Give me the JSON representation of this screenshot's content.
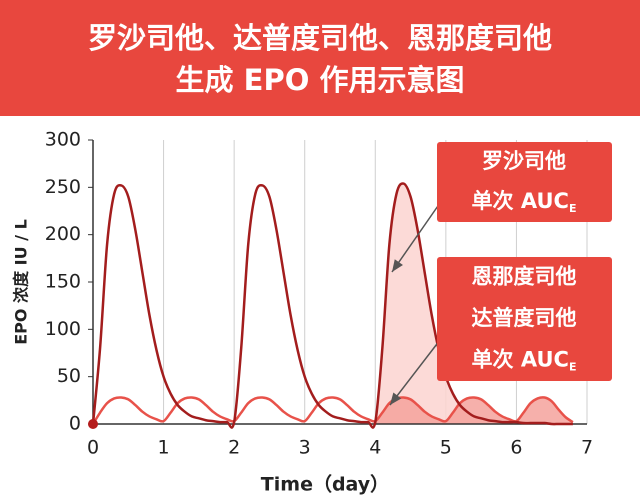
{
  "chart_data": {
    "type": "line",
    "title_lines": [
      "罗沙司他、达普度司他、恩那度司他",
      "生成 EPO 作用示意图"
    ],
    "xlabel": "Time（day）",
    "ylabel": "EPO 浓度 IU / L",
    "x": [
      0,
      0.1,
      0.2,
      0.3,
      0.4,
      0.5,
      0.6,
      0.7,
      0.8,
      0.9,
      1,
      1.1,
      1.2,
      1.3,
      1.4,
      1.5,
      1.6,
      1.7,
      1.8,
      1.9,
      2,
      2.1,
      2.2,
      2.3,
      2.4,
      2.5,
      2.6,
      2.7,
      2.8,
      2.9,
      3,
      3.1,
      3.2,
      3.3,
      3.4,
      3.5,
      3.6,
      3.7,
      3.8,
      3.9,
      4,
      4.1,
      4.2,
      4.3,
      4.4,
      4.5,
      4.6,
      4.7,
      4.8,
      4.9,
      5,
      5.1,
      5.2,
      5.3,
      5.4,
      5.5,
      5.6,
      5.7,
      5.8,
      5.9,
      6,
      6.1,
      6.2,
      6.3,
      6.4,
      6.5,
      6.6,
      6.7,
      6.8
    ],
    "series": [
      {
        "name": "罗沙司他",
        "color": "#a31d1d",
        "values": [
          0,
          80,
          190,
          243,
          252,
          240,
          205,
          160,
          115,
          78,
          50,
          32,
          20,
          13,
          8,
          6,
          4,
          3,
          2,
          2,
          2,
          80,
          190,
          243,
          252,
          240,
          205,
          160,
          115,
          78,
          50,
          32,
          20,
          13,
          8,
          6,
          4,
          3,
          2,
          2,
          2,
          80,
          190,
          243,
          254,
          240,
          205,
          160,
          115,
          78,
          50,
          32,
          20,
          13,
          8,
          6,
          4,
          3,
          2,
          2,
          2,
          1,
          1,
          1,
          1,
          0,
          0,
          0,
          0
        ]
      },
      {
        "name": "恩那度司他 / 达普度司他",
        "color": "#e8524a",
        "values": [
          0,
          12,
          22,
          27,
          28,
          26,
          20,
          13,
          8,
          5,
          3,
          12,
          22,
          27,
          28,
          26,
          20,
          13,
          8,
          5,
          3,
          12,
          22,
          27,
          28,
          26,
          20,
          13,
          8,
          5,
          3,
          12,
          22,
          27,
          28,
          26,
          20,
          13,
          8,
          5,
          3,
          12,
          22,
          27,
          28,
          26,
          20,
          13,
          8,
          5,
          3,
          12,
          22,
          27,
          28,
          26,
          20,
          13,
          8,
          5,
          3,
          12,
          22,
          27,
          28,
          24,
          15,
          7,
          2
        ]
      }
    ],
    "highlight_from": 4,
    "xlim": [
      0,
      7
    ],
    "xticks": [
      0,
      1,
      2,
      3,
      4,
      5,
      6,
      7
    ],
    "ylim": [
      0,
      300
    ],
    "yticks": [
      0,
      50,
      100,
      150,
      200,
      250,
      300
    ],
    "grid": true,
    "annotations": [
      {
        "lines": [
          "罗沙司他"
        ],
        "auc": "单次 AUC",
        "sub": "E"
      },
      {
        "lines": [
          "恩那度司他",
          "达普度司他"
        ],
        "auc": "单次 AUC",
        "sub": "E"
      }
    ]
  }
}
